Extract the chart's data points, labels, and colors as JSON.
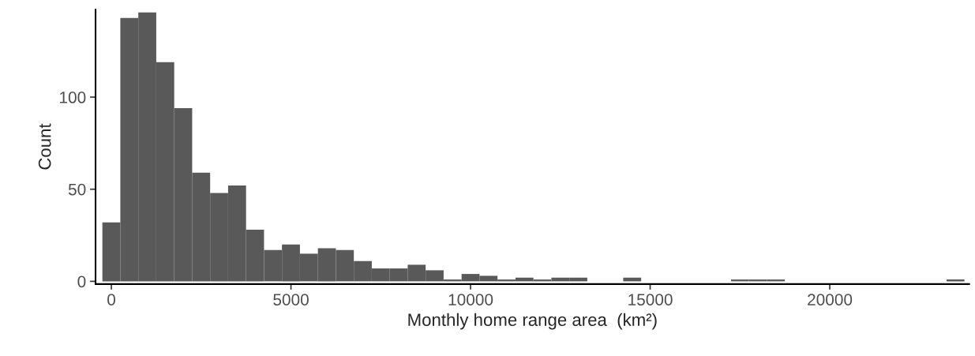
{
  "chart_data": {
    "type": "histogram",
    "xlabel": "Monthly home range area  (km²)",
    "ylabel": "Count",
    "color": "#595959",
    "bins": [
      -250,
      250,
      750,
      1250,
      1750,
      2250,
      2750,
      3250,
      3750,
      4250,
      4750,
      5250,
      5750,
      6250,
      6750,
      7250,
      7750,
      8250,
      8750,
      9250,
      9750,
      10250,
      10750,
      11250,
      11750,
      12250,
      12750,
      13250,
      13750,
      14250,
      14750,
      15250,
      15750,
      16250,
      16750,
      17250,
      17750,
      18250,
      18750,
      19250,
      19750,
      20250,
      20750,
      21250,
      21750,
      22250,
      22750,
      23250,
      23750
    ],
    "values": [
      32,
      143,
      146,
      119,
      94,
      59,
      48,
      52,
      28,
      17,
      20,
      15,
      18,
      17,
      11,
      7,
      7,
      9,
      6,
      1,
      4,
      3,
      1,
      2,
      1,
      2,
      2,
      0,
      0,
      2,
      0,
      0,
      0,
      0,
      0,
      1,
      1,
      1,
      0,
      0,
      0,
      0,
      0,
      0,
      0,
      0,
      0,
      1
    ],
    "xlim": [
      -440,
      23880
    ],
    "ylim": [
      -1.5,
      147.5
    ],
    "xticks": [
      0,
      5000,
      10000,
      15000,
      20000
    ],
    "yticks": [
      0,
      50,
      100
    ],
    "grid": false
  }
}
